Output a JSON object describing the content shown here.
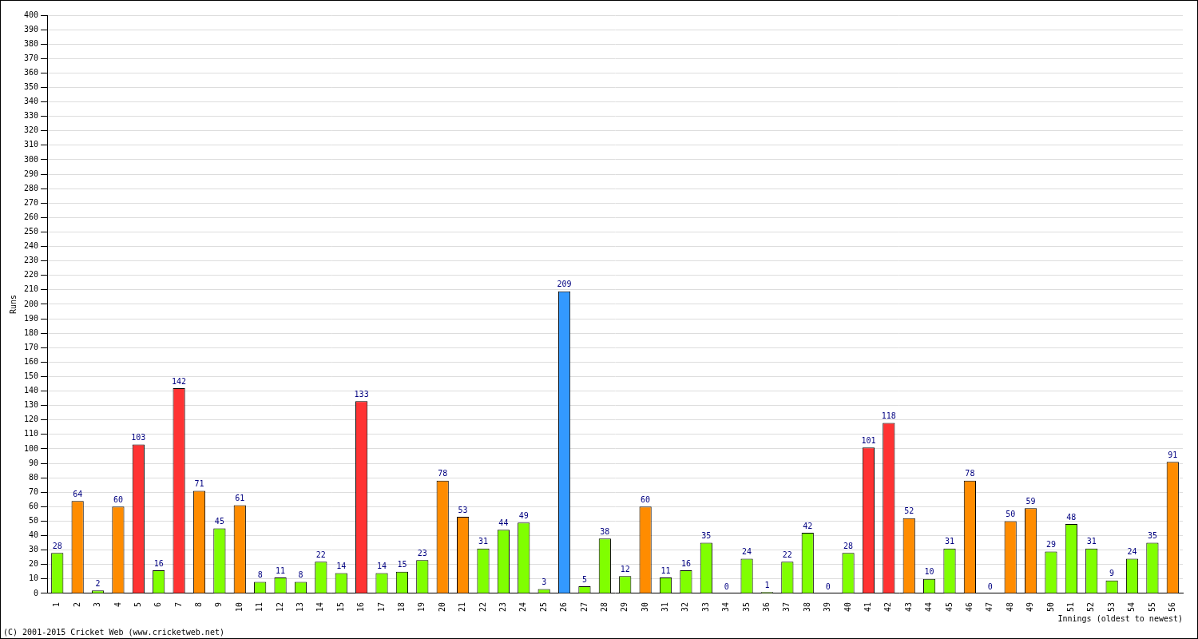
{
  "chart_data": {
    "type": "bar",
    "x_label": "Innings (oldest to newest)",
    "y_label": "Runs",
    "annotations": [
      "(C) 2001-2015 Cricket Web (www.cricketweb.net)"
    ],
    "categories": [
      "1",
      "2",
      "3",
      "4",
      "5",
      "6",
      "7",
      "8",
      "9",
      "10",
      "11",
      "12",
      "13",
      "14",
      "15",
      "16",
      "17",
      "18",
      "19",
      "20",
      "21",
      "22",
      "23",
      "24",
      "25",
      "26",
      "27",
      "28",
      "29",
      "30",
      "31",
      "32",
      "33",
      "34",
      "35",
      "36",
      "37",
      "38",
      "39",
      "40",
      "41",
      "42",
      "43",
      "44",
      "45",
      "46",
      "47",
      "48",
      "49",
      "50",
      "51",
      "52",
      "53",
      "54",
      "55",
      "56"
    ],
    "values": [
      28,
      64,
      2,
      60,
      103,
      16,
      142,
      71,
      45,
      61,
      8,
      11,
      8,
      22,
      14,
      133,
      14,
      15,
      23,
      78,
      53,
      31,
      44,
      49,
      3,
      209,
      5,
      38,
      12,
      60,
      11,
      16,
      35,
      0,
      24,
      1,
      22,
      42,
      0,
      28,
      101,
      118,
      52,
      10,
      31,
      78,
      0,
      50,
      59,
      29,
      48,
      31,
      9,
      24,
      35,
      91
    ],
    "colors": [
      "#80ff00",
      "#ff8c00",
      "#80ff00",
      "#ff8c00",
      "#ff3333",
      "#80ff00",
      "#ff3333",
      "#ff8c00",
      "#80ff00",
      "#ff8c00",
      "#80ff00",
      "#80ff00",
      "#80ff00",
      "#80ff00",
      "#80ff00",
      "#ff3333",
      "#80ff00",
      "#80ff00",
      "#80ff00",
      "#ff8c00",
      "#ff8c00",
      "#80ff00",
      "#80ff00",
      "#80ff00",
      "#80ff00",
      "#3399ff",
      "#80ff00",
      "#80ff00",
      "#80ff00",
      "#ff8c00",
      "#80ff00",
      "#80ff00",
      "#80ff00",
      "#80ff00",
      "#80ff00",
      "#80ff00",
      "#80ff00",
      "#80ff00",
      "#80ff00",
      "#80ff00",
      "#ff3333",
      "#ff3333",
      "#ff8c00",
      "#80ff00",
      "#80ff00",
      "#ff8c00",
      "#80ff00",
      "#ff8c00",
      "#ff8c00",
      "#80ff00",
      "#80ff00",
      "#80ff00",
      "#80ff00",
      "#80ff00",
      "#80ff00",
      "#ff8c00"
    ],
    "ylim": [
      0,
      400
    ],
    "yticks": [
      0,
      10,
      20,
      30,
      40,
      50,
      60,
      70,
      80,
      90,
      100,
      110,
      120,
      130,
      140,
      150,
      160,
      170,
      180,
      190,
      200,
      210,
      220,
      230,
      240,
      250,
      260,
      270,
      280,
      290,
      300,
      310,
      320,
      330,
      340,
      350,
      360,
      370,
      380,
      390,
      400
    ],
    "grid": true,
    "data_labels": true
  }
}
